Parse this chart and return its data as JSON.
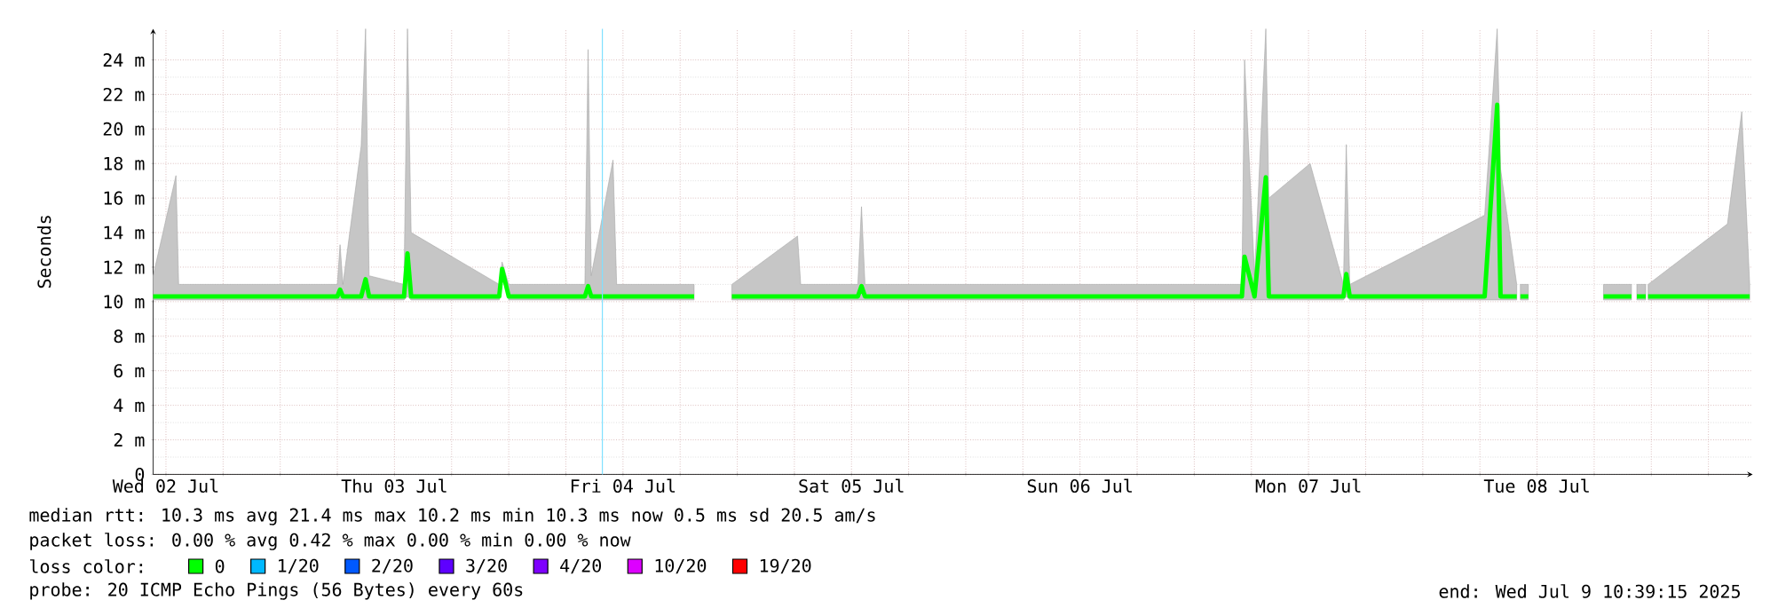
{
  "chart_data": {
    "type": "line",
    "ylabel": "Seconds",
    "legend_title": "loss color:",
    "legend": "bottom",
    "grid": true,
    "xlim": [
      "2025-07-02T10:39",
      "2025-07-09T10:39"
    ],
    "ylim": [
      0,
      25.8
    ],
    "xticks": [
      {
        "value": "2025-07-02T12:00",
        "label": "Wed 02 Jul"
      },
      {
        "value": "2025-07-02T18:00",
        "label": null
      },
      {
        "value": "2025-07-03T00:00",
        "label": null
      },
      {
        "value": "2025-07-03T06:00",
        "label": null
      },
      {
        "value": "2025-07-03T12:00",
        "label": "Thu 03 Jul"
      },
      {
        "value": "2025-07-03T18:00",
        "label": null
      },
      {
        "value": "2025-07-04T00:00",
        "label": null
      },
      {
        "value": "2025-07-04T06:00",
        "label": null
      },
      {
        "value": "2025-07-04T12:00",
        "label": "Fri 04 Jul"
      },
      {
        "value": "2025-07-04T18:00",
        "label": null
      },
      {
        "value": "2025-07-05T00:00",
        "label": null
      },
      {
        "value": "2025-07-05T06:00",
        "label": null
      },
      {
        "value": "2025-07-05T12:00",
        "label": "Sat 05 Jul"
      },
      {
        "value": "2025-07-05T18:00",
        "label": null
      },
      {
        "value": "2025-07-06T00:00",
        "label": null
      },
      {
        "value": "2025-07-06T06:00",
        "label": null
      },
      {
        "value": "2025-07-06T12:00",
        "label": "Sun 06 Jul"
      },
      {
        "value": "2025-07-06T18:00",
        "label": null
      },
      {
        "value": "2025-07-07T00:00",
        "label": null
      },
      {
        "value": "2025-07-07T06:00",
        "label": null
      },
      {
        "value": "2025-07-07T12:00",
        "label": "Mon 07 Jul"
      },
      {
        "value": "2025-07-07T18:00",
        "label": null
      },
      {
        "value": "2025-07-08T00:00",
        "label": null
      },
      {
        "value": "2025-07-08T06:00",
        "label": null
      },
      {
        "value": "2025-07-08T12:00",
        "label": "Tue 08 Jul"
      },
      {
        "value": "2025-07-08T18:00",
        "label": null
      },
      {
        "value": "2025-07-09T00:00",
        "label": null
      },
      {
        "value": "2025-07-09T06:00",
        "label": null
      }
    ],
    "yticks": [
      0,
      {
        "value": 2,
        "label": "2 m"
      },
      {
        "value": 4,
        "label": "4 m"
      },
      {
        "value": 6,
        "label": "6 m"
      },
      {
        "value": 8,
        "label": "8 m"
      },
      {
        "value": 10,
        "label": "10 m"
      },
      {
        "value": 12,
        "label": "12 m"
      },
      {
        "value": 14,
        "label": "14 m"
      },
      {
        "value": 16,
        "label": "16 m"
      },
      {
        "value": 18,
        "label": "18 m"
      },
      {
        "value": 20,
        "label": "20 m"
      },
      {
        "value": 22,
        "label": "22 m"
      },
      {
        "value": 24,
        "label": "24 m"
      }
    ],
    "ref_lines": [
      {
        "axis": "x",
        "value": "2025-07-04T09:50",
        "color": "#80e0ff"
      }
    ],
    "series": [
      {
        "name": "0",
        "color": "#00ff00",
        "x": [
          "2025-07-02T10:39",
          "2025-07-02T13:03",
          "2025-07-02T13:20",
          "2025-07-03T06:00",
          "2025-07-03T06:17",
          "2025-07-03T06:35",
          "2025-07-03T08:30",
          "2025-07-03T08:58",
          "2025-07-03T09:20",
          "2025-07-03T13:00",
          "2025-07-03T13:22",
          "2025-07-03T13:45",
          "2025-07-03T23:00",
          "2025-07-03T23:18",
          "2025-07-04T00:00",
          "2025-07-04T08:00",
          "2025-07-04T08:20",
          "2025-07-04T08:40",
          "2025-07-04T10:57",
          "2025-07-04T11:20",
          "2025-07-04T19:28",
          "2025-07-04T19:40",
          "2025-07-04T23:26",
          "2025-07-05T06:20",
          "2025-07-05T06:40",
          "2025-07-05T12:40",
          "2025-07-05T13:03",
          "2025-07-05T13:25",
          "2025-07-07T05:00",
          "2025-07-07T05:17",
          "2025-07-07T06:20",
          "2025-07-07T07:31",
          "2025-07-07T07:50",
          "2025-07-07T12:10",
          "2025-07-07T15:40",
          "2025-07-07T15:58",
          "2025-07-07T16:20",
          "2025-07-08T06:30",
          "2025-07-08T07:49",
          "2025-07-08T08:10",
          "2025-07-08T09:52",
          "2025-07-08T10:05",
          "2025-07-08T10:15",
          "2025-07-08T11:05",
          "2025-07-08T11:15",
          "2025-07-08T18:59",
          "2025-07-08T21:55",
          "2025-07-08T22:10",
          "2025-07-08T22:29",
          "2025-07-08T23:25",
          "2025-07-08T23:32",
          "2025-07-08T23:40",
          "2025-07-09T08:00",
          "2025-07-09T09:30",
          "2025-07-09T10:20"
        ],
        "values": [
          10.3,
          10.3,
          10.3,
          10.3,
          10.7,
          10.3,
          10.3,
          11.3,
          10.3,
          10.3,
          12.8,
          10.3,
          10.3,
          11.9,
          10.3,
          10.3,
          10.9,
          10.3,
          10.3,
          10.3,
          10.3,
          null,
          10.3,
          10.3,
          10.3,
          10.3,
          10.9,
          10.3,
          10.3,
          12.6,
          10.3,
          17.2,
          10.3,
          10.3,
          10.3,
          11.6,
          10.3,
          10.3,
          21.4,
          10.3,
          10.3,
          null,
          10.3,
          10.3,
          null,
          10.3,
          10.3,
          null,
          10.3,
          10.3,
          null,
          10.3,
          10.3,
          10.3,
          10.3
        ],
        "lower": [
          10.1,
          10.1,
          10.1,
          10.1,
          10.1,
          10.1,
          10.1,
          10.1,
          10.1,
          10.1,
          10.3,
          10.1,
          10.1,
          11.5,
          10.1,
          10.1,
          10.1,
          10.1,
          10.1,
          10.1,
          10.1,
          null,
          10.1,
          10.1,
          10.1,
          10.1,
          10.1,
          10.1,
          10.1,
          10.1,
          10.1,
          10.1,
          10.1,
          10.1,
          10.1,
          10.3,
          10.1,
          10.1,
          10.1,
          10.1,
          10.1,
          null,
          10.1,
          10.1,
          null,
          10.1,
          10.1,
          null,
          10.1,
          10.1,
          null,
          10.1,
          10.1,
          10.1,
          10.1
        ],
        "upper": [
          11.5,
          17.3,
          11.0,
          11.0,
          13.3,
          11.0,
          19.0,
          25.8,
          11.5,
          11.0,
          25.8,
          14.0,
          11.0,
          12.3,
          11.0,
          11.0,
          24.6,
          11.5,
          18.2,
          11.0,
          11.0,
          null,
          11.0,
          13.8,
          11.0,
          11.0,
          15.5,
          11.0,
          11.0,
          24.0,
          11.5,
          25.8,
          16.0,
          18.0,
          11.0,
          19.1,
          11.0,
          15.0,
          25.8,
          17.7,
          11.0,
          null,
          11.0,
          11.0,
          null,
          11.0,
          11.0,
          null,
          11.0,
          11.0,
          null,
          11.0,
          14.5,
          21.0,
          11.0
        ]
      },
      {
        "name": "1/20",
        "color": "#00b8ff"
      },
      {
        "name": "2/20",
        "color": "#0059ff"
      },
      {
        "name": "3/20",
        "color": "#5e00ff"
      },
      {
        "name": "4/20",
        "color": "#7e00ff"
      },
      {
        "name": "10/20",
        "color": "#dd00ff"
      },
      {
        "name": "19/20",
        "color": "#ff0000"
      }
    ],
    "annotations": [
      "median rtt: 10.3 ms avg 21.4 ms max 10.2 ms min 10.3 ms now 0.5 ms sd 20.5 am/s",
      "packet loss: 0.00 % avg 0.42 % max 0.00 % min 0.00 % now",
      "probe: 20 ICMP Echo Pings (56 Bytes) every 60s",
      "end: Wed Jul 9 10:39:15 2025"
    ]
  }
}
